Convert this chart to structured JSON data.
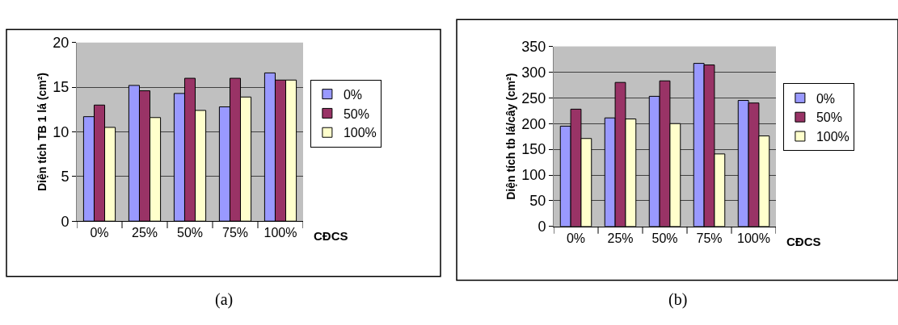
{
  "chart_data": [
    {
      "type": "bar",
      "categories": [
        "0%",
        "25%",
        "50%",
        "75%",
        "100%"
      ],
      "xlabel": "CĐCS",
      "ylabel": "Diện tích TB 1 lá (cm²)",
      "ylim": [
        0,
        20
      ],
      "yticks": [
        0,
        5,
        10,
        15,
        20
      ],
      "grid": "y",
      "legend": "right",
      "annotations": [
        "(a)"
      ],
      "series": [
        {
          "name": "0%",
          "color": "#9999ff",
          "values": [
            11.7,
            15.2,
            14.3,
            12.8,
            16.6
          ]
        },
        {
          "name": "50%",
          "color": "#993366",
          "values": [
            13.0,
            14.6,
            16.0,
            16.0,
            15.8
          ]
        },
        {
          "name": "100%",
          "color": "#ffffcc",
          "values": [
            10.5,
            11.6,
            12.4,
            13.9,
            15.8
          ]
        }
      ]
    },
    {
      "type": "bar",
      "categories": [
        "0%",
        "25%",
        "50%",
        "75%",
        "100%"
      ],
      "xlabel": "CĐCS",
      "ylabel": "Diện tích tb lá/cây (cm²)",
      "ylim": [
        0,
        350
      ],
      "yticks": [
        0,
        50,
        100,
        150,
        200,
        250,
        300,
        350
      ],
      "grid": "y",
      "legend": "right",
      "annotations": [
        "(b)"
      ],
      "series": [
        {
          "name": "0%",
          "color": "#9999ff",
          "values": [
            195,
            211,
            253,
            317,
            245
          ]
        },
        {
          "name": "50%",
          "color": "#993366",
          "values": [
            228,
            280,
            283,
            314,
            240
          ]
        },
        {
          "name": "100%",
          "color": "#ffffcc",
          "values": [
            171,
            209,
            200,
            141,
            176
          ]
        }
      ]
    }
  ]
}
